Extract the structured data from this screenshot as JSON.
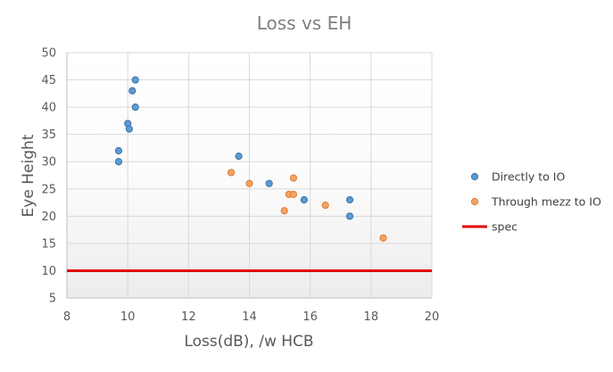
{
  "chart_data": {
    "type": "scatter",
    "title": "Loss vs EH",
    "xlabel": "Loss(dB), /w HCB",
    "ylabel": "Eye Height",
    "xlim": [
      8,
      20
    ],
    "ylim": [
      5,
      50
    ],
    "xticks": [
      8,
      10,
      12,
      14,
      16,
      18,
      20
    ],
    "yticks": [
      5,
      10,
      15,
      20,
      25,
      30,
      35,
      40,
      45,
      50
    ],
    "grid": true,
    "legend_position": "right",
    "series": [
      {
        "name": "Directly to IO",
        "color": "#5b9bd5",
        "marker": "circle",
        "points": [
          [
            9.7,
            32
          ],
          [
            9.7,
            30
          ],
          [
            10.0,
            37
          ],
          [
            10.05,
            36
          ],
          [
            10.15,
            43
          ],
          [
            10.25,
            45
          ],
          [
            10.25,
            40
          ],
          [
            13.65,
            31
          ],
          [
            14.65,
            26
          ],
          [
            15.8,
            23
          ],
          [
            17.3,
            23
          ],
          [
            17.3,
            20
          ]
        ]
      },
      {
        "name": "Through mezz to IO",
        "color": "#f4a460",
        "marker": "circle",
        "points": [
          [
            13.4,
            28
          ],
          [
            14.0,
            26
          ],
          [
            15.15,
            21
          ],
          [
            15.3,
            24
          ],
          [
            15.45,
            24
          ],
          [
            15.45,
            27
          ],
          [
            16.5,
            22
          ],
          [
            18.4,
            16
          ]
        ]
      },
      {
        "name": "spec",
        "color": "#e00000",
        "marker": "line",
        "y": 10
      }
    ]
  }
}
